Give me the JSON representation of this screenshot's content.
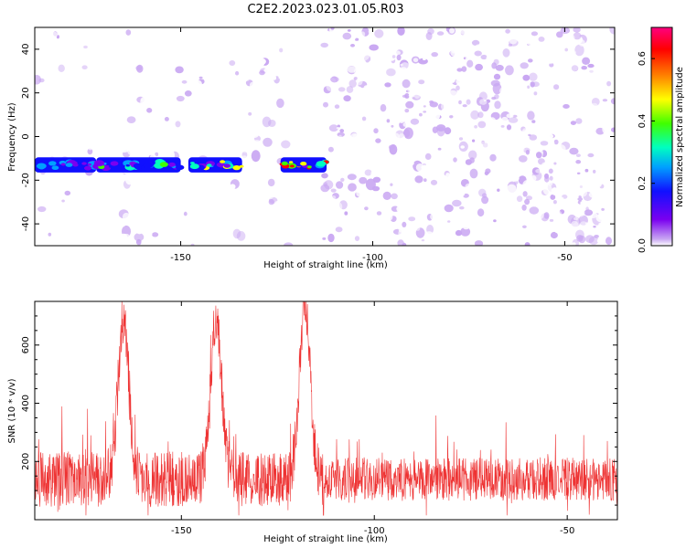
{
  "title": "C2E2.2023.023.01.05.R03",
  "chart_data": [
    {
      "type": "heatmap",
      "xlabel": "Height of straight line (km)",
      "ylabel": "Frequency (Hz)",
      "xlim": [
        -188,
        -37
      ],
      "ylim": [
        -50,
        50
      ],
      "x_ticks": [
        -150,
        -100,
        -50
      ],
      "y_ticks": [
        -40,
        -20,
        0,
        20,
        40
      ],
      "colorbar": {
        "label": "Normalized spectral amplitude",
        "range": [
          0,
          0.7
        ],
        "ticks": [
          0.0,
          0.2,
          0.4,
          0.6
        ],
        "colormap": [
          "#ffffff",
          "#c9a7f2",
          "#7a00f0",
          "#1010ff",
          "#00a0ff",
          "#00ffc0",
          "#40ff00",
          "#ffff00",
          "#ff8000",
          "#ff0000",
          "#ff0080"
        ]
      },
      "gaps": [
        [
          -173.5,
          -165
        ],
        [
          -143.5,
          -137
        ],
        [
          -120.5,
          -113
        ]
      ],
      "signal_band": {
        "frequency": -13,
        "segments": [
          {
            "x": [
              -188,
              -172
            ],
            "peak": 0.35
          },
          {
            "x": [
              -172,
              -150
            ],
            "peak": 0.45
          },
          {
            "x": [
              -148,
              -134
            ],
            "peak": 0.55
          },
          {
            "x": [
              -124,
              -112
            ],
            "peak": 0.7
          }
        ]
      },
      "grid": false
    },
    {
      "type": "line",
      "xlabel": "Height of straight line (km)",
      "ylabel": "SNR (10 * v/v)",
      "xlim": [
        -188,
        -37
      ],
      "ylim": [
        0,
        750
      ],
      "x_ticks": [
        -150,
        -100,
        -50
      ],
      "y_ticks": [
        200,
        400,
        600
      ],
      "color": "#ee3333",
      "baseline": 140,
      "peaks": [
        {
          "x": -165,
          "value": 680
        },
        {
          "x": -141,
          "value": 680
        },
        {
          "x": -118,
          "value": 740
        }
      ],
      "grid": false
    }
  ]
}
